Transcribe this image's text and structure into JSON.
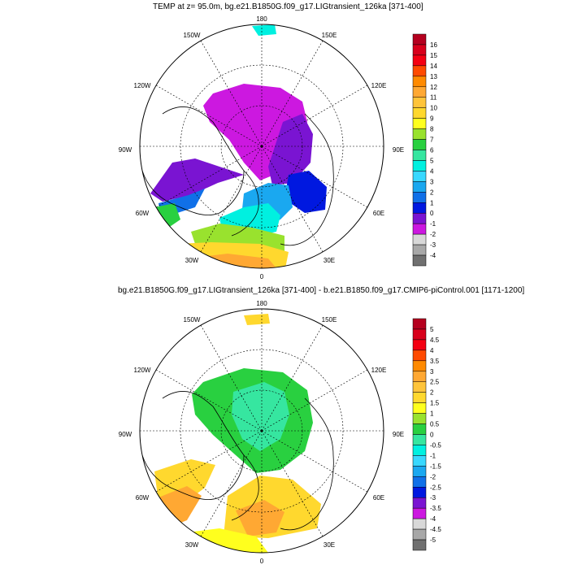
{
  "panels": [
    {
      "title": "TEMP at z=  95.0m, bg.e21.B1850G.f09_g17.LIGtransient_126ka [371-400]",
      "lon_labels": [
        "180",
        "150E",
        "120E",
        "90E",
        "60E",
        "30E",
        "0",
        "30W",
        "60W",
        "90W",
        "120W",
        "150W"
      ],
      "colorbar": {
        "labels": [
          "16",
          "15",
          "14",
          "13",
          "12",
          "11",
          "10",
          "9",
          "8",
          "7",
          "6",
          "5",
          "4",
          "3",
          "2",
          "1",
          "0",
          "-1",
          "-2",
          "-3",
          "-4"
        ],
        "colors": [
          "#b5001f",
          "#d8001b",
          "#f40012",
          "#ff4a00",
          "#ff8a00",
          "#ffa833",
          "#ffc43a",
          "#ffd82e",
          "#ffff1e",
          "#99e22e",
          "#29d040",
          "#36e6a0",
          "#00f0e0",
          "#38d8ff",
          "#1aa8f0",
          "#1070e8",
          "#0018e0",
          "#7a14d2",
          "#cc18e0",
          "#d8d8d8",
          "#a8a8a8",
          "#707070"
        ]
      }
    },
    {
      "title": "bg.e21.B1850G.f09_g17.LIGtransient_126ka [371-400] - b.e21.B1850.f09_g17.CMIP6-piControl.001 [1171-1200]",
      "lon_labels": [
        "180",
        "150E",
        "120E",
        "90E",
        "60E",
        "30E",
        "0",
        "30W",
        "60W",
        "90W",
        "120W",
        "150W"
      ],
      "colorbar": {
        "labels": [
          "5",
          "4.5",
          "4",
          "3.5",
          "3",
          "2.5",
          "2",
          "1.5",
          "1",
          "0.5",
          "0",
          "-0.5",
          "-1",
          "-1.5",
          "-2",
          "-2.5",
          "-3",
          "-3.5",
          "-4",
          "-4.5",
          "-5"
        ],
        "colors": [
          "#b5001f",
          "#d8001b",
          "#f40012",
          "#ff4a00",
          "#ff8a00",
          "#ffa833",
          "#ffc43a",
          "#ffd82e",
          "#ffff1e",
          "#99e22e",
          "#29d040",
          "#36e6a0",
          "#00f0e0",
          "#38d8ff",
          "#1aa8f0",
          "#1070e8",
          "#0018e0",
          "#7a14d2",
          "#cc18e0",
          "#d8d8d8",
          "#a8a8a8",
          "#707070"
        ]
      }
    }
  ]
}
